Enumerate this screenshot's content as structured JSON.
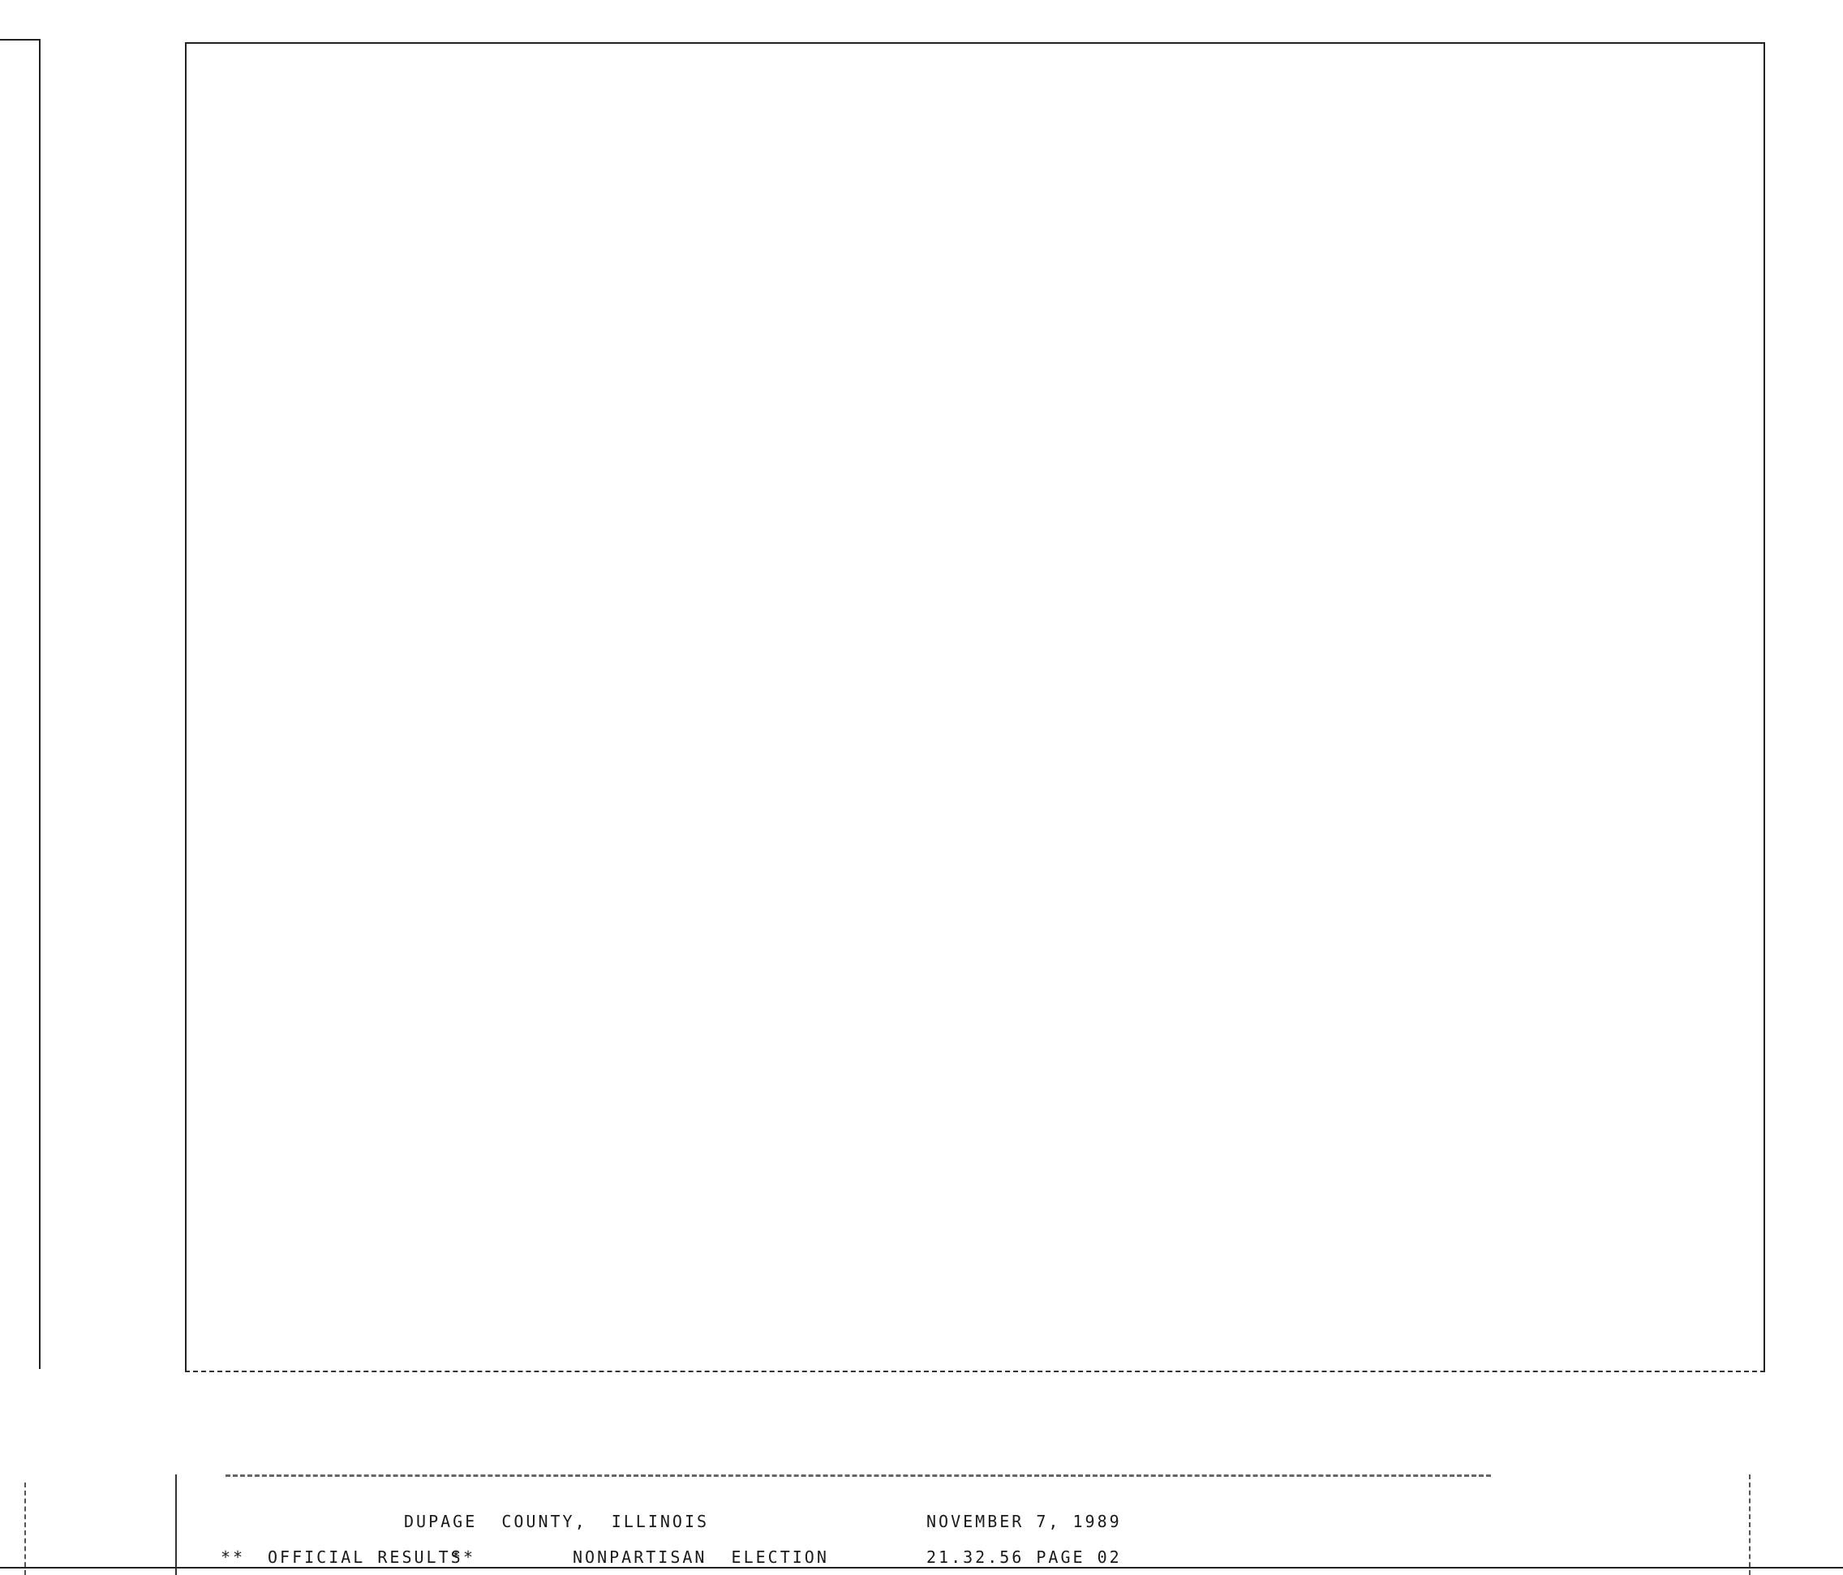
{
  "header": {
    "county": "DUPAGE  COUNTY,  ILLINOIS",
    "date": "NOVEMBER 7, 1989",
    "marks_left": "**",
    "official": "OFFICIAL RESULTS",
    "marks_right": "**",
    "election": "NONPARTISAN  ELECTION",
    "time_page": "21.32.56 PAGE 02"
  }
}
